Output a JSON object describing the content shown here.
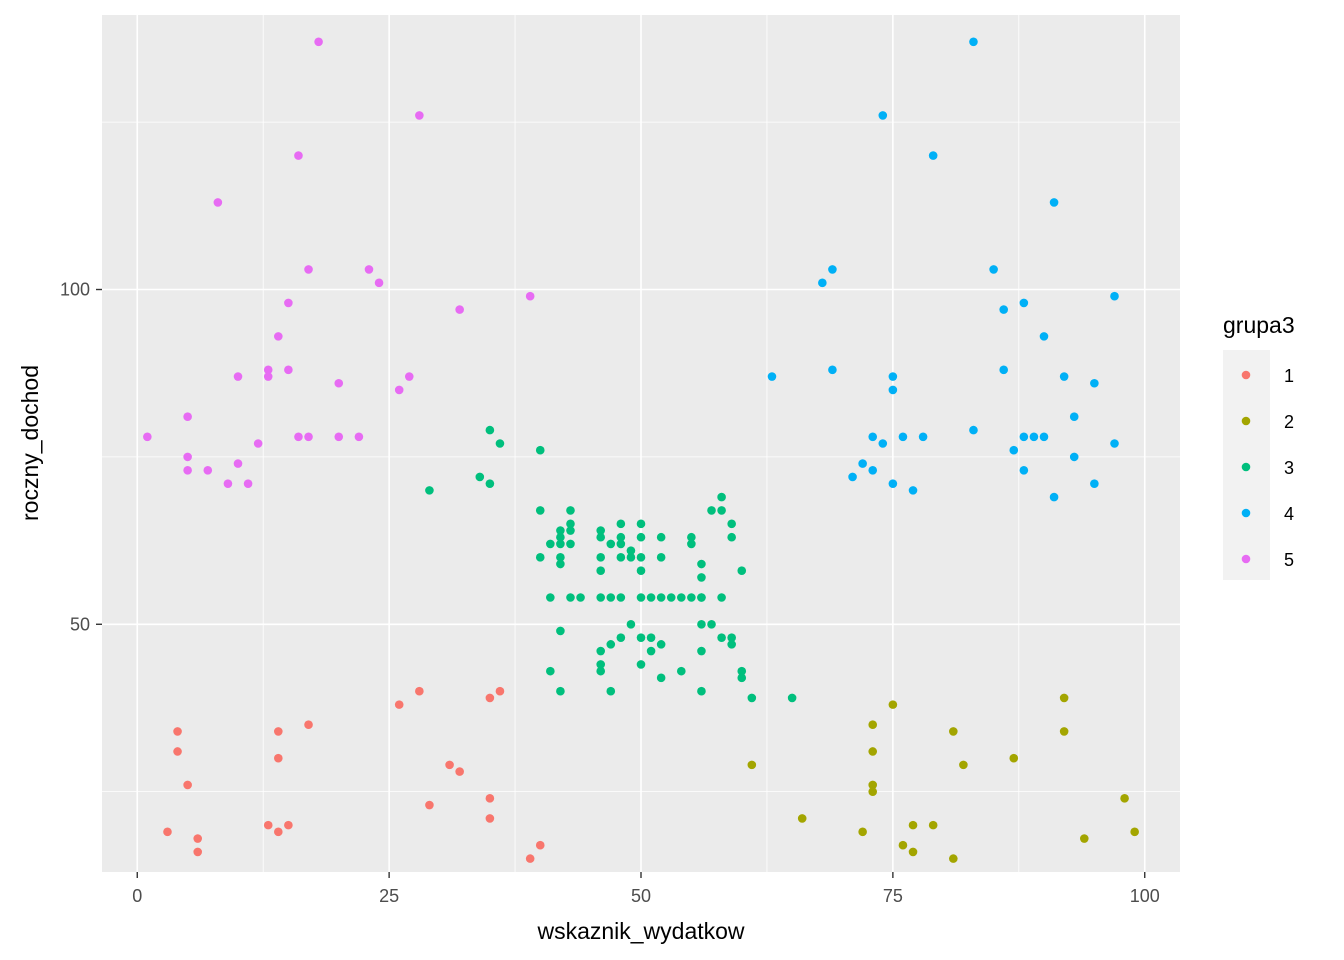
{
  "chart_data": {
    "type": "scatter",
    "xlabel": "wskaznik_wydatkow",
    "ylabel": "roczny_dochod",
    "xlim": [
      -3.5,
      103.5
    ],
    "ylim": [
      13,
      141
    ],
    "x_ticks": [
      0,
      25,
      50,
      75,
      100
    ],
    "x_tick_labels": [
      "0",
      "25",
      "50",
      "75",
      "100"
    ],
    "y_ticks": [
      50,
      100
    ],
    "y_tick_labels": [
      "50",
      "100"
    ],
    "grid": true,
    "legend": {
      "title": "grupa3",
      "position": "right"
    },
    "series": [
      {
        "name": "1",
        "color": "#F8766D",
        "points": [
          [
            3,
            19
          ],
          [
            4,
            31
          ],
          [
            4,
            34
          ],
          [
            5,
            26
          ],
          [
            6,
            18
          ],
          [
            6,
            16
          ],
          [
            13,
            20
          ],
          [
            14,
            19
          ],
          [
            14,
            30
          ],
          [
            14,
            34
          ],
          [
            15,
            20
          ],
          [
            17,
            35
          ],
          [
            26,
            38
          ],
          [
            28,
            40
          ],
          [
            29,
            23
          ],
          [
            31,
            29
          ],
          [
            32,
            28
          ],
          [
            35,
            24
          ],
          [
            35,
            39
          ],
          [
            35,
            21
          ],
          [
            36,
            40
          ],
          [
            39,
            15
          ],
          [
            40,
            17
          ]
        ]
      },
      {
        "name": "2",
        "color": "#A3A500",
        "points": [
          [
            61,
            29
          ],
          [
            66,
            21
          ],
          [
            72,
            19
          ],
          [
            73,
            25
          ],
          [
            73,
            35
          ],
          [
            73,
            31
          ],
          [
            73,
            26
          ],
          [
            75,
            38
          ],
          [
            76,
            17
          ],
          [
            77,
            20
          ],
          [
            77,
            16
          ],
          [
            79,
            20
          ],
          [
            81,
            15
          ],
          [
            81,
            34
          ],
          [
            82,
            29
          ],
          [
            87,
            30
          ],
          [
            92,
            39
          ],
          [
            92,
            34
          ],
          [
            94,
            18
          ],
          [
            98,
            24
          ],
          [
            99,
            19
          ]
        ]
      },
      {
        "name": "3",
        "color": "#00BF7D",
        "points": [
          [
            29,
            70
          ],
          [
            34,
            72
          ],
          [
            35,
            71
          ],
          [
            35,
            79
          ],
          [
            36,
            77
          ],
          [
            40,
            67
          ],
          [
            40,
            60
          ],
          [
            40,
            76
          ],
          [
            41,
            43
          ],
          [
            41,
            54
          ],
          [
            41,
            62
          ],
          [
            42,
            40
          ],
          [
            42,
            49
          ],
          [
            42,
            59
          ],
          [
            42,
            60
          ],
          [
            42,
            62
          ],
          [
            42,
            63
          ],
          [
            42,
            64
          ],
          [
            43,
            64
          ],
          [
            43,
            62
          ],
          [
            43,
            54
          ],
          [
            43,
            65
          ],
          [
            43,
            67
          ],
          [
            44,
            54
          ],
          [
            46,
            43
          ],
          [
            46,
            44
          ],
          [
            46,
            46
          ],
          [
            46,
            54
          ],
          [
            46,
            58
          ],
          [
            46,
            60
          ],
          [
            46,
            63
          ],
          [
            46,
            64
          ],
          [
            47,
            40
          ],
          [
            47,
            47
          ],
          [
            47,
            54
          ],
          [
            47,
            62
          ],
          [
            48,
            48
          ],
          [
            48,
            54
          ],
          [
            48,
            60
          ],
          [
            48,
            62
          ],
          [
            48,
            63
          ],
          [
            48,
            65
          ],
          [
            49,
            50
          ],
          [
            49,
            60
          ],
          [
            49,
            61
          ],
          [
            50,
            44
          ],
          [
            50,
            48
          ],
          [
            50,
            54
          ],
          [
            50,
            58
          ],
          [
            50,
            60
          ],
          [
            50,
            63
          ],
          [
            50,
            65
          ],
          [
            51,
            46
          ],
          [
            51,
            48
          ],
          [
            51,
            54
          ],
          [
            52,
            42
          ],
          [
            52,
            47
          ],
          [
            52,
            54
          ],
          [
            52,
            60
          ],
          [
            52,
            63
          ],
          [
            53,
            54
          ],
          [
            54,
            54
          ],
          [
            54,
            43
          ],
          [
            55,
            54
          ],
          [
            55,
            63
          ],
          [
            55,
            62
          ],
          [
            56,
            54
          ],
          [
            56,
            59
          ],
          [
            56,
            57
          ],
          [
            56,
            54
          ],
          [
            56,
            46
          ],
          [
            56,
            50
          ],
          [
            56,
            40
          ],
          [
            57,
            50
          ],
          [
            57,
            67
          ],
          [
            58,
            67
          ],
          [
            58,
            54
          ],
          [
            58,
            69
          ],
          [
            58,
            48
          ],
          [
            59,
            47
          ],
          [
            59,
            63
          ],
          [
            59,
            65
          ],
          [
            59,
            48
          ],
          [
            60,
            43
          ],
          [
            60,
            42
          ],
          [
            60,
            58
          ],
          [
            61,
            39
          ],
          [
            65,
            39
          ]
        ]
      },
      {
        "name": "4",
        "color": "#00B0F6",
        "points": [
          [
            63,
            87
          ],
          [
            68,
            101
          ],
          [
            69,
            103
          ],
          [
            69,
            88
          ],
          [
            71,
            72
          ],
          [
            72,
            74
          ],
          [
            73,
            73
          ],
          [
            73,
            78
          ],
          [
            74,
            77
          ],
          [
            74,
            126
          ],
          [
            75,
            71
          ],
          [
            75,
            85
          ],
          [
            75,
            87
          ],
          [
            76,
            78
          ],
          [
            77,
            70
          ],
          [
            78,
            78
          ],
          [
            79,
            120
          ],
          [
            83,
            79
          ],
          [
            83,
            137
          ],
          [
            85,
            103
          ],
          [
            86,
            97
          ],
          [
            86,
            88
          ],
          [
            87,
            76
          ],
          [
            88,
            73
          ],
          [
            88,
            78
          ],
          [
            88,
            98
          ],
          [
            89,
            78
          ],
          [
            90,
            78
          ],
          [
            90,
            93
          ],
          [
            91,
            69
          ],
          [
            91,
            113
          ],
          [
            92,
            87
          ],
          [
            93,
            81
          ],
          [
            93,
            75
          ],
          [
            95,
            86
          ],
          [
            95,
            71
          ],
          [
            97,
            99
          ],
          [
            97,
            77
          ]
        ]
      },
      {
        "name": "5",
        "color": "#E76BF3",
        "points": [
          [
            1,
            78
          ],
          [
            5,
            73
          ],
          [
            5,
            75
          ],
          [
            5,
            81
          ],
          [
            7,
            73
          ],
          [
            8,
            113
          ],
          [
            9,
            71
          ],
          [
            10,
            87
          ],
          [
            10,
            74
          ],
          [
            11,
            71
          ],
          [
            12,
            77
          ],
          [
            13,
            87
          ],
          [
            13,
            88
          ],
          [
            14,
            93
          ],
          [
            15,
            98
          ],
          [
            15,
            88
          ],
          [
            16,
            78
          ],
          [
            16,
            120
          ],
          [
            17,
            78
          ],
          [
            17,
            103
          ],
          [
            18,
            137
          ],
          [
            20,
            78
          ],
          [
            20,
            86
          ],
          [
            22,
            78
          ],
          [
            23,
            103
          ],
          [
            24,
            101
          ],
          [
            26,
            85
          ],
          [
            27,
            87
          ],
          [
            28,
            126
          ],
          [
            32,
            97
          ],
          [
            39,
            99
          ]
        ]
      }
    ]
  }
}
